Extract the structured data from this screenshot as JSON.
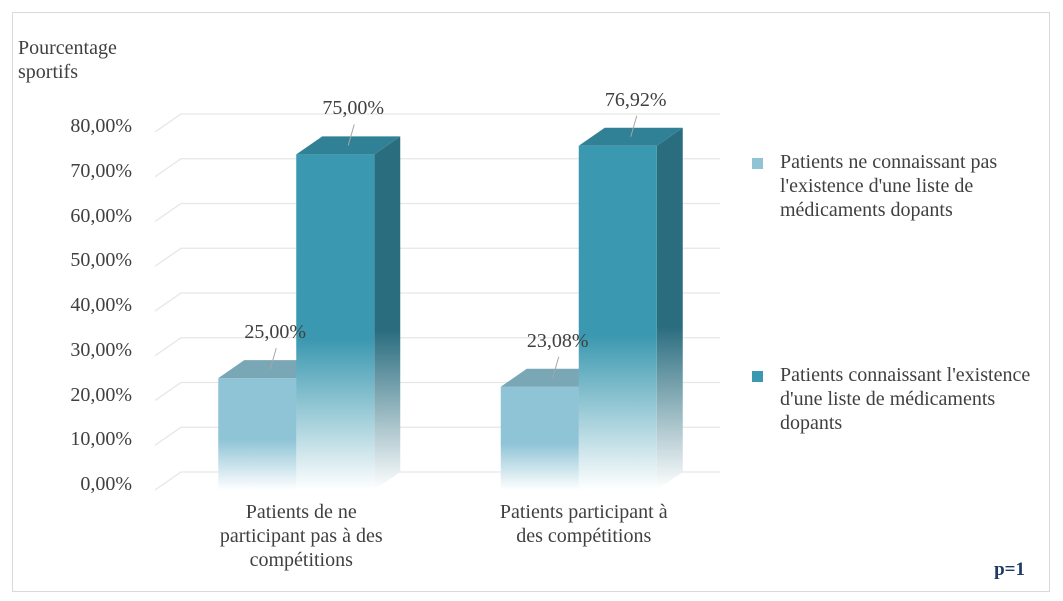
{
  "chart_data": {
    "type": "bar3d",
    "y_label": "Pourcentage sportifs",
    "categories": [
      "Patients de ne participant pas à des compétitions",
      "Patients participant à des compétitions"
    ],
    "series": [
      {
        "name": "Patients ne connaissant pas l'existence d'une liste de médicaments dopants",
        "color": "#8fc4d6",
        "values": [
          25,
          23.08
        ],
        "value_labels": [
          "25,00%",
          "23,08%"
        ]
      },
      {
        "name": "Patients connaissant l'existence d'une liste de médicaments dopants",
        "color": "#3a98b0",
        "values": [
          75,
          76.92
        ],
        "value_labels": [
          "75,00%",
          "76,92%"
        ]
      }
    ],
    "ylim": [
      0,
      80
    ],
    "yticks": [
      {
        "value": 0,
        "label": "0,00%"
      },
      {
        "value": 10,
        "label": "10,00%"
      },
      {
        "value": 20,
        "label": "20,00%"
      },
      {
        "value": 30,
        "label": "30,00%"
      },
      {
        "value": 40,
        "label": "40,00%"
      },
      {
        "value": 50,
        "label": "50,00%"
      },
      {
        "value": 60,
        "label": "60,00%"
      },
      {
        "value": 70,
        "label": "70,00%"
      },
      {
        "value": 80,
        "label": "80,00%"
      }
    ],
    "grid": true,
    "legend": "right",
    "annotation": "p=1"
  }
}
